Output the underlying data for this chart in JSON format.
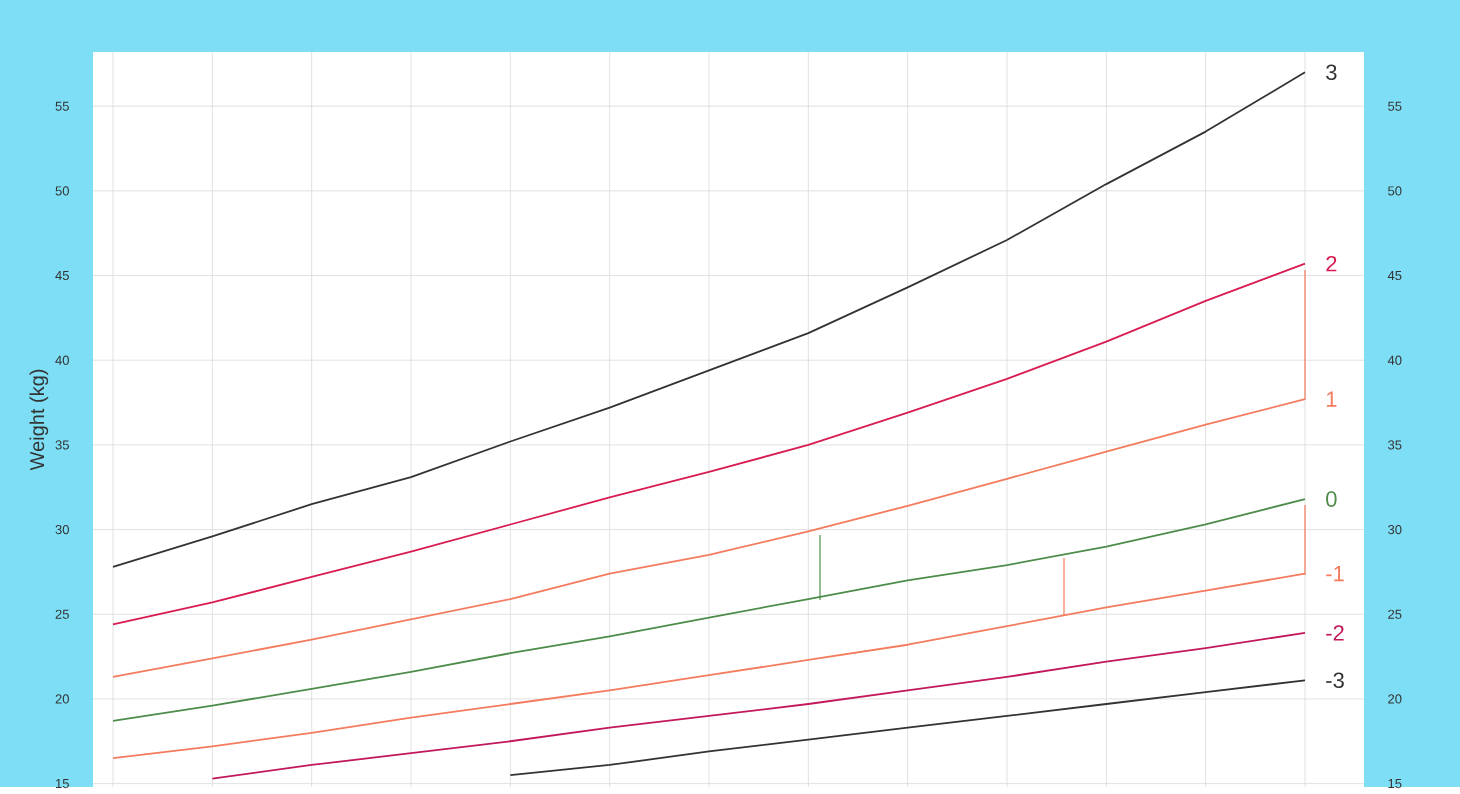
{
  "chart_data": {
    "type": "line",
    "ylabel": "Weight (kg)",
    "categories": [
      null,
      null,
      null,
      null,
      null,
      null,
      null,
      null,
      null,
      null,
      null,
      null,
      null
    ],
    "series": [
      {
        "name": "3",
        "color": "#333333",
        "values": [
          27.8,
          29.6,
          31.5,
          33.1,
          35.2,
          37.2,
          39.4,
          41.6,
          44.3,
          47.1,
          50.4,
          53.5,
          57.0
        ]
      },
      {
        "name": "2",
        "color": "#d81b50",
        "values": [
          24.4,
          25.7,
          27.2,
          28.7,
          30.3,
          31.9,
          33.4,
          35.0,
          36.9,
          38.9,
          41.1,
          43.5,
          45.7
        ]
      },
      {
        "name": "1",
        "color": "#f47b5e",
        "values": [
          21.3,
          22.4,
          23.5,
          24.7,
          25.9,
          27.4,
          28.5,
          29.9,
          31.4,
          33.0,
          34.6,
          36.2,
          37.7
        ]
      },
      {
        "name": "0",
        "color": "#4e8c4a",
        "values": [
          18.7,
          19.6,
          20.6,
          21.6,
          22.7,
          23.7,
          24.8,
          25.9,
          27.0,
          27.9,
          29.0,
          30.3,
          31.8
        ]
      },
      {
        "name": "-1",
        "color": "#f47b5e",
        "values": [
          16.5,
          17.2,
          18.0,
          18.9,
          19.7,
          20.5,
          21.4,
          22.3,
          23.2,
          24.3,
          25.4,
          26.4,
          27.4
        ]
      },
      {
        "name": "-2",
        "color": "#c2185b",
        "values": [
          null,
          15.3,
          16.1,
          16.8,
          17.5,
          18.3,
          19.0,
          19.7,
          20.5,
          21.3,
          22.2,
          23.0,
          23.9
        ]
      },
      {
        "name": "-3",
        "color": "#333333",
        "values": [
          null,
          null,
          null,
          null,
          15.5,
          16.1,
          16.9,
          17.6,
          18.3,
          19.0,
          19.7,
          20.4,
          21.1
        ]
      }
    ],
    "ylim": [
      14.8,
      58.2
    ],
    "yticks": [
      15,
      20,
      25,
      30,
      35,
      40,
      45,
      50,
      55
    ],
    "y2lim": [
      14.8,
      58.2
    ],
    "y2ticks": [
      15,
      20,
      25,
      30,
      35,
      40,
      45,
      50,
      55
    ],
    "grid": true
  }
}
